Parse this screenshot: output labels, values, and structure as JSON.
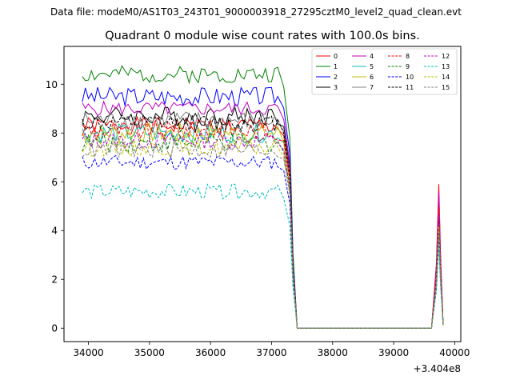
{
  "chart_data": {
    "type": "line",
    "suptitle": "Data file: modeM0/AS1T03_243T01_9000003918_27295cztM0_level2_quad_clean.evt",
    "title": "Quadrant 0 module wise count rates with 100.0s bins.",
    "xlabel": "",
    "ylabel": "",
    "x_offset_label": "+3.404e8",
    "xlim": [
      33600,
      40100
    ],
    "ylim": [
      -0.55,
      11.55
    ],
    "xticks": [
      34000,
      35000,
      36000,
      37000,
      38000,
      39000,
      40000
    ],
    "yticks": [
      0,
      2,
      4,
      6,
      8,
      10
    ],
    "x_units_note": "x values are offsets to be added to 3.404e8",
    "timeline": {
      "x_start": 33900,
      "bin": 100,
      "active_until": 37100,
      "drop": [
        [
          37200,
          0.95
        ],
        [
          37300,
          0.75
        ],
        [
          37350,
          0.3
        ]
      ],
      "zero_from": 37420,
      "zero_to": 39620,
      "spike": [
        [
          39700,
          0.45
        ],
        [
          39740,
          1.0
        ],
        [
          39770,
          0.5
        ],
        [
          39810,
          0.03
        ]
      ]
    },
    "series": [
      {
        "name": "0",
        "color": "#ff0000",
        "dash": "solid",
        "level": 8.3,
        "amp": 0.35,
        "spike": 5.9
      },
      {
        "name": "1",
        "color": "#008000",
        "dash": "solid",
        "level": 10.4,
        "amp": 0.35,
        "spike": 4.8
      },
      {
        "name": "2",
        "color": "#0000ff",
        "dash": "solid",
        "level": 9.5,
        "amp": 0.4,
        "spike": 5.2
      },
      {
        "name": "3",
        "color": "#000000",
        "dash": "solid",
        "level": 8.7,
        "amp": 0.4,
        "spike": 4.6
      },
      {
        "name": "4",
        "color": "#bf00bf",
        "dash": "solid",
        "level": 9.0,
        "amp": 0.3,
        "spike": 5.6
      },
      {
        "name": "5",
        "color": "#00bfbf",
        "dash": "solid",
        "level": 8.0,
        "amp": 0.4,
        "spike": 4.1
      },
      {
        "name": "6",
        "color": "#bfbf00",
        "dash": "solid",
        "level": 8.0,
        "amp": 0.4,
        "spike": 4.9
      },
      {
        "name": "7",
        "color": "#808080",
        "dash": "solid",
        "level": 8.5,
        "amp": 0.4,
        "spike": 4.3
      },
      {
        "name": "8",
        "color": "#ff0000",
        "dash": "dashed",
        "level": 8.1,
        "amp": 0.4,
        "spike": 5.0
      },
      {
        "name": "9",
        "color": "#008000",
        "dash": "dashed",
        "level": 7.6,
        "amp": 0.4,
        "spike": 4.4
      },
      {
        "name": "10",
        "color": "#0000ff",
        "dash": "dashed",
        "level": 6.8,
        "amp": 0.3,
        "spike": 3.6
      },
      {
        "name": "11",
        "color": "#000000",
        "dash": "dashed",
        "level": 8.4,
        "amp": 0.35,
        "spike": 4.5
      },
      {
        "name": "12",
        "color": "#bf00bf",
        "dash": "dashed",
        "level": 7.7,
        "amp": 0.35,
        "spike": 4.7
      },
      {
        "name": "13",
        "color": "#00bfbf",
        "dash": "dashed",
        "level": 5.6,
        "amp": 0.3,
        "spike": 3.4
      },
      {
        "name": "14",
        "color": "#bfbf00",
        "dash": "dashed",
        "level": 7.4,
        "amp": 0.35,
        "spike": 4.2
      },
      {
        "name": "15",
        "color": "#808080",
        "dash": "dashed",
        "level": 7.3,
        "amp": 0.35,
        "spike": 3.9
      }
    ],
    "legend_placement": "upper right, 4 columns"
  }
}
